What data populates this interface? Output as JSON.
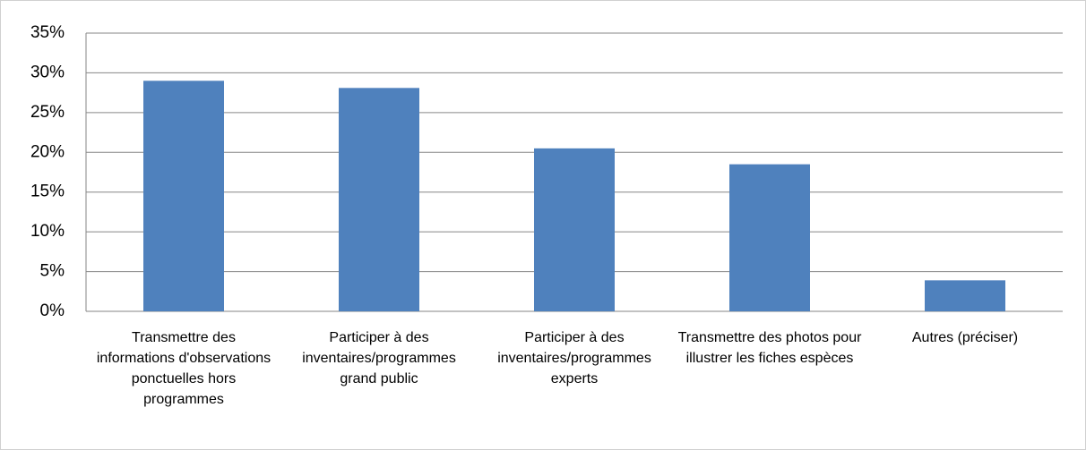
{
  "chart_data": {
    "type": "bar",
    "categories": [
      "Transmettre des informations d'observations ponctuelles hors programmes",
      "Participer à  des inventaires/programmes grand public",
      "Participer à  des inventaires/programmes experts",
      "Transmettre des photos pour illustrer les fiches espèces",
      "Autres (préciser)"
    ],
    "values": [
      29,
      28.1,
      20.5,
      18.5,
      3.9
    ],
    "color": "#4f81bd",
    "ylim": [
      0,
      35
    ],
    "yticks": [
      {
        "value": 0,
        "label": "0%"
      },
      {
        "value": 5,
        "label": "5%"
      },
      {
        "value": 10,
        "label": "10%"
      },
      {
        "value": 15,
        "label": "15%"
      },
      {
        "value": 20,
        "label": "20%"
      },
      {
        "value": 25,
        "label": "25%"
      },
      {
        "value": 30,
        "label": "30%"
      },
      {
        "value": 35,
        "label": "35%"
      }
    ],
    "grid": true
  }
}
